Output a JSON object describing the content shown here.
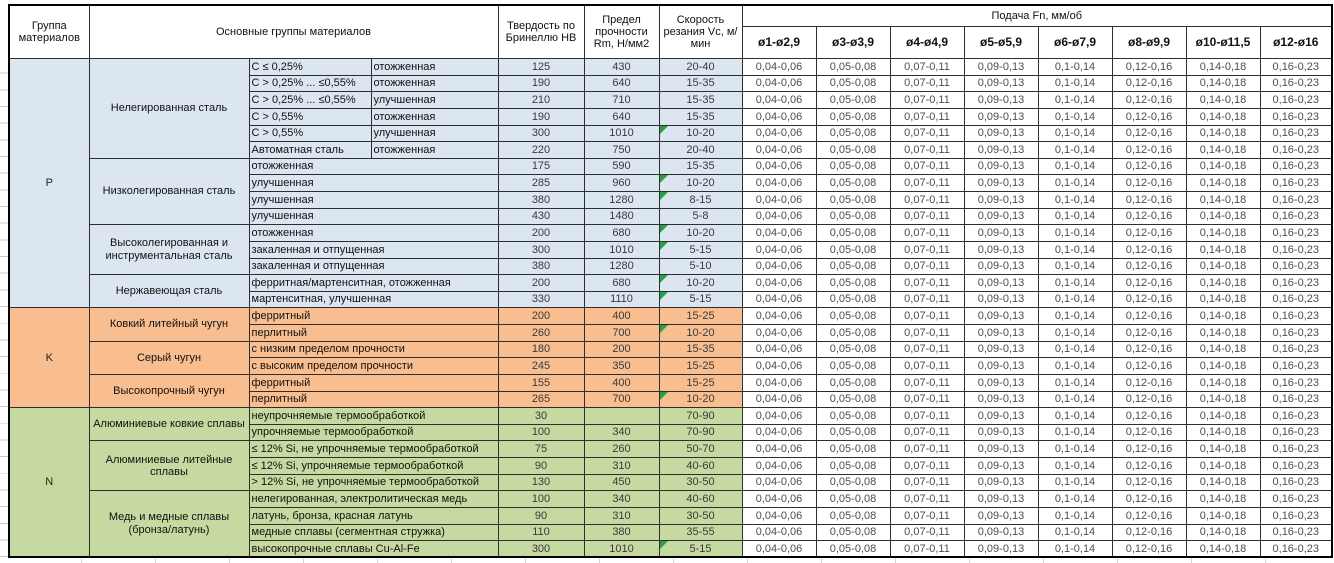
{
  "header": {
    "col_group": "Группа материалов",
    "col_materials": "Основные группы материалов",
    "col_hardness": "Твердость по Бринеллю HB",
    "col_strength": "Предел прочности Rm, Н/мм2",
    "col_speed": "Скорость резания Vc, м/мин",
    "feed_title": "Подача Fn, мм/об",
    "feed_columns": [
      "ø1-ø2,9",
      "ø3-ø3,9",
      "ø4-ø4,9",
      "ø5-ø5,9",
      "ø6-ø7,9",
      "ø8-ø9,9",
      "ø10-ø11,5",
      "ø12-ø16"
    ]
  },
  "feed_values": [
    "0,04-0,06",
    "0,05-0,08",
    "0,07-0,11",
    "0,09-0,13",
    "0,1-0,14",
    "0,12-0,16",
    "0,14-0,18",
    "0,16-0,23"
  ],
  "colors": {
    "group_p_bg": "#DCE6F1",
    "group_k_bg": "#F9BE8F",
    "group_n_bg": "#C6D9A0",
    "note_triangle": "#2E9E44"
  },
  "groups": [
    {
      "label": "P",
      "color": "#DCE6F1",
      "subgroups": [
        {
          "name": "Нелегированная сталь",
          "rows": [
            {
              "desc": "C ≤ 0,25%",
              "state": "отожженная",
              "hb": "125",
              "rm": "430",
              "vc": "20-40",
              "note": false
            },
            {
              "desc": "C > 0,25% ... ≤0,55%",
              "state": "отожженная",
              "hb": "190",
              "rm": "640",
              "vc": "15-35",
              "note": false
            },
            {
              "desc": "C > 0,25% ... ≤0,55%",
              "state": "улучшенная",
              "hb": "210",
              "rm": "710",
              "vc": "15-35",
              "note": false
            },
            {
              "desc": "C > 0,55%",
              "state": "отожженная",
              "hb": "190",
              "rm": "640",
              "vc": "15-35",
              "note": false
            },
            {
              "desc": "C > 0,55%",
              "state": "улучшенная",
              "hb": "300",
              "rm": "1010",
              "vc": "10-20",
              "note": true
            },
            {
              "desc": "Автоматная сталь",
              "state": "отожженная",
              "hb": "220",
              "rm": "750",
              "vc": "20-40",
              "note": false
            }
          ]
        },
        {
          "name": "Низколегированная сталь",
          "rows": [
            {
              "desc": "отожженная",
              "hb": "175",
              "rm": "590",
              "vc": "15-35",
              "note": false
            },
            {
              "desc": "улучшенная",
              "hb": "285",
              "rm": "960",
              "vc": "10-20",
              "note": true
            },
            {
              "desc": "улучшенная",
              "hb": "380",
              "rm": "1280",
              "vc": "8-15",
              "note": true
            },
            {
              "desc": "улучшенная",
              "hb": "430",
              "rm": "1480",
              "vc": "5-8",
              "note": false
            }
          ]
        },
        {
          "name": "Высоколегированная и инструментальная сталь",
          "rows": [
            {
              "desc": "отожженная",
              "hb": "200",
              "rm": "680",
              "vc": "10-20",
              "note": true
            },
            {
              "desc": "закаленная и отпущенная",
              "hb": "300",
              "rm": "1010",
              "vc": "5-15",
              "note": true
            },
            {
              "desc": "закаленная и отпущенная",
              "hb": "380",
              "rm": "1280",
              "vc": "5-10",
              "note": false
            }
          ]
        },
        {
          "name": "Нержавеющая сталь",
          "rows": [
            {
              "desc": "ферритная/мартенситная, отожженная",
              "hb": "200",
              "rm": "680",
              "vc": "10-20",
              "note": true
            },
            {
              "desc": "мартенситная, улучшенная",
              "hb": "330",
              "rm": "1110",
              "vc": "5-15",
              "note": true
            }
          ]
        }
      ]
    },
    {
      "label": "K",
      "color": "#F9BE8F",
      "subgroups": [
        {
          "name": "Ковкий литейный чугун",
          "rows": [
            {
              "desc": "ферритный",
              "hb": "200",
              "rm": "400",
              "vc": "15-25",
              "note": false
            },
            {
              "desc": "перлитный",
              "hb": "260",
              "rm": "700",
              "vc": "10-20",
              "note": true
            }
          ]
        },
        {
          "name": "Серый чугун",
          "rows": [
            {
              "desc": "с низким пределом прочности",
              "hb": "180",
              "rm": "200",
              "vc": "15-35",
              "note": false
            },
            {
              "desc": "с высоким пределом прочности",
              "hb": "245",
              "rm": "350",
              "vc": "15-25",
              "note": false
            }
          ]
        },
        {
          "name": "Высокопрочный чугун",
          "rows": [
            {
              "desc": "ферритный",
              "hb": "155",
              "rm": "400",
              "vc": "15-25",
              "note": false
            },
            {
              "desc": "перлитный",
              "hb": "265",
              "rm": "700",
              "vc": "10-20",
              "note": true
            }
          ]
        }
      ]
    },
    {
      "label": "N",
      "color": "#C6D9A0",
      "subgroups": [
        {
          "name": "Алюминиевые ковкие сплавы",
          "rows": [
            {
              "desc": "неупрочняемые термообработкой",
              "hb": "30",
              "rm": "",
              "vc": "70-90",
              "note": false
            },
            {
              "desc": "упрочняемые термообработкой",
              "hb": "100",
              "rm": "340",
              "vc": "70-90",
              "note": false
            }
          ]
        },
        {
          "name": "Алюминиевые литейные сплавы",
          "rows": [
            {
              "desc": "≤ 12% Si, не упрочняемые термообработкой",
              "hb": "75",
              "rm": "260",
              "vc": "50-70",
              "note": false
            },
            {
              "desc": "≤ 12% Si, упрочняемые термообработкой",
              "hb": "90",
              "rm": "310",
              "vc": "40-60",
              "note": false
            },
            {
              "desc": "> 12% Si, не упрочняемые термообработкой",
              "hb": "130",
              "rm": "450",
              "vc": "30-50",
              "note": false
            }
          ]
        },
        {
          "name": "Медь и медные сплавы (бронза/латунь)",
          "rows": [
            {
              "desc": "нелегированная, электролитическая медь",
              "hb": "100",
              "rm": "340",
              "vc": "40-60",
              "note": false
            },
            {
              "desc": "латунь, бронза, красная латунь",
              "hb": "90",
              "rm": "310",
              "vc": "30-50",
              "note": false
            },
            {
              "desc": "медные сплавы (сегментная стружка)",
              "hb": "110",
              "rm": "380",
              "vc": "35-55",
              "note": false
            },
            {
              "desc": "высокопрочные сплавы Cu-Al-Fe",
              "hb": "300",
              "rm": "1010",
              "vc": "5-15",
              "note": true
            }
          ]
        }
      ]
    }
  ]
}
